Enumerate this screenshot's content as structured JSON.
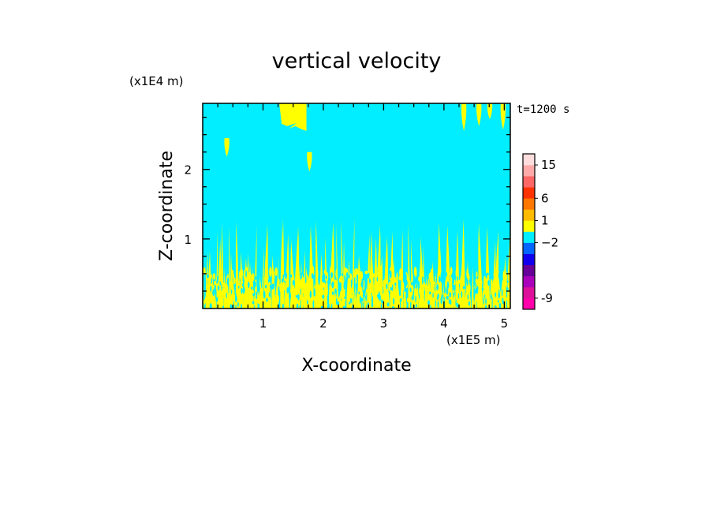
{
  "chart_data": {
    "type": "heatmap",
    "title": "vertical velocity",
    "xlabel": "X-coordinate",
    "ylabel": "Z-coordinate",
    "x_scale_label": "(x1E5 m)",
    "y_scale_label": "(x1E4 m)",
    "time_label": "t=1200 s",
    "xlim": [
      0,
      5.1
    ],
    "ylim": [
      0,
      2.95
    ],
    "x_ticks": [
      {
        "value": 1,
        "label": "1"
      },
      {
        "value": 2,
        "label": "2"
      },
      {
        "value": 3,
        "label": "3"
      },
      {
        "value": 4,
        "label": "4"
      },
      {
        "value": 5,
        "label": "5"
      }
    ],
    "y_ticks": [
      {
        "value": 1,
        "label": "1"
      },
      {
        "value": 2,
        "label": "2"
      }
    ],
    "colorbar": {
      "colors": [
        "#ff00aa",
        "#dd1199",
        "#aa00bb",
        "#660099",
        "#1100ee",
        "#0066ff",
        "#00eeff",
        "#ffff00",
        "#ffbb00",
        "#ff7700",
        "#ff3300",
        "#ff6666",
        "#ffaaaa",
        "#ffdddd"
      ],
      "tick_labels": [
        {
          "label": "-9",
          "level": 0.5
        },
        {
          "label": "−2",
          "level": 5.5
        },
        {
          "label": "1",
          "level": 7.5
        },
        {
          "label": "6",
          "level": 9.5
        },
        {
          "label": "15",
          "level": 12.5
        }
      ]
    },
    "background_color": "#00eeff",
    "feature_color": "#ffff00",
    "upper_features": [
      {
        "kind": "blob",
        "x0": 1.27,
        "x1": 1.72,
        "z_top": 2.95,
        "z_bottom": 2.6
      },
      {
        "kind": "drop",
        "x": 0.4,
        "z_top": 2.45,
        "z_bottom": 2.18
      },
      {
        "kind": "drop",
        "x": 1.77,
        "z_top": 2.25,
        "z_bottom": 1.97
      },
      {
        "kind": "drop",
        "x": 4.33,
        "z_top": 2.95,
        "z_bottom": 2.55
      },
      {
        "kind": "drop",
        "x": 4.58,
        "z_top": 2.95,
        "z_bottom": 2.62
      },
      {
        "kind": "drop",
        "x": 4.76,
        "z_top": 2.95,
        "z_bottom": 2.72
      },
      {
        "kind": "drop",
        "x": 4.98,
        "z_top": 2.95,
        "z_bottom": 2.57
      }
    ],
    "plumes": {
      "x_min": 0.0,
      "x_max": 5.1,
      "z_max": 1.35,
      "count": 120
    }
  }
}
